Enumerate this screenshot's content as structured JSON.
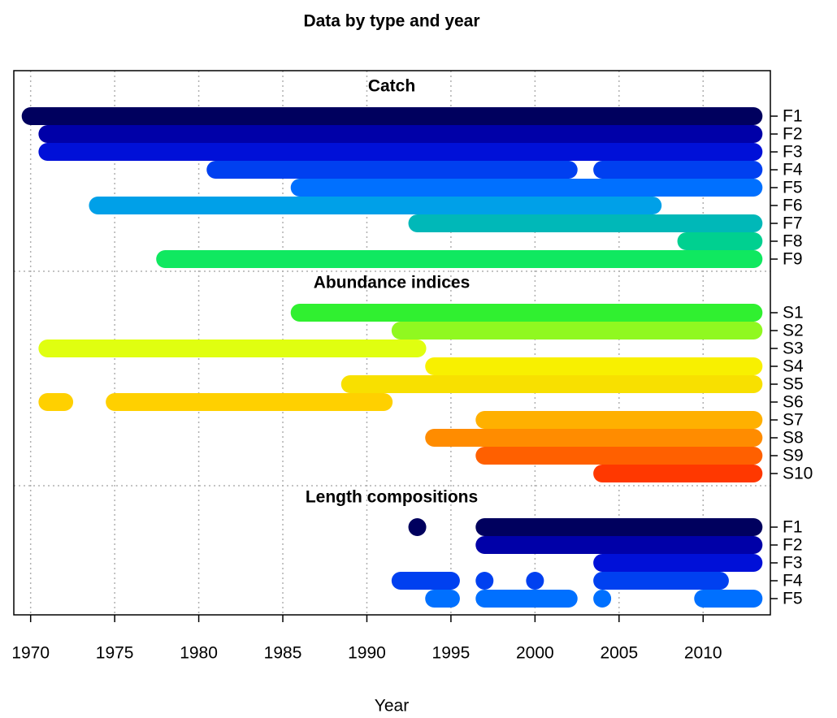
{
  "chart_data": {
    "type": "timeline",
    "title": "Data by type and year",
    "xlabel": "Year",
    "xlim": [
      1969,
      2014
    ],
    "xticks": [
      1970,
      1975,
      1980,
      1985,
      1990,
      1995,
      2000,
      2005,
      2010
    ],
    "grid": true,
    "groups": [
      {
        "title": "Catch",
        "rows": [
          {
            "label": "F1",
            "color": "#00005e",
            "segments": [
              [
                1970,
                2013
              ]
            ]
          },
          {
            "label": "F2",
            "color": "#0000a8",
            "segments": [
              [
                1971,
                2013
              ]
            ]
          },
          {
            "label": "F3",
            "color": "#0010d8",
            "segments": [
              [
                1971,
                2013
              ]
            ]
          },
          {
            "label": "F4",
            "color": "#0040f0",
            "segments": [
              [
                1981,
                2002
              ],
              [
                2004,
                2013
              ]
            ]
          },
          {
            "label": "F5",
            "color": "#0070ff",
            "segments": [
              [
                1986,
                2013
              ]
            ]
          },
          {
            "label": "F6",
            "color": "#00a0e8",
            "segments": [
              [
                1974,
                2007
              ]
            ]
          },
          {
            "label": "F7",
            "color": "#00b8b8",
            "segments": [
              [
                1993,
                2013
              ]
            ]
          },
          {
            "label": "F8",
            "color": "#00d090",
            "segments": [
              [
                2009,
                2013
              ]
            ]
          },
          {
            "label": "F9",
            "color": "#10e860",
            "segments": [
              [
                1978,
                2013
              ]
            ]
          }
        ]
      },
      {
        "title": "Abundance indices",
        "rows": [
          {
            "label": "S1",
            "color": "#30f030",
            "segments": [
              [
                1986,
                2013
              ]
            ]
          },
          {
            "label": "S2",
            "color": "#90f820",
            "segments": [
              [
                1992,
                2013
              ]
            ]
          },
          {
            "label": "S3",
            "color": "#e0ff10",
            "segments": [
              [
                1971,
                1993
              ]
            ]
          },
          {
            "label": "S4",
            "color": "#f8f000",
            "segments": [
              [
                1994,
                2013
              ]
            ]
          },
          {
            "label": "S5",
            "color": "#f8e000",
            "segments": [
              [
                1989,
                2013
              ]
            ]
          },
          {
            "label": "S6",
            "color": "#ffd000",
            "segments": [
              [
                1971,
                1972
              ],
              [
                1975,
                1991
              ]
            ]
          },
          {
            "label": "S7",
            "color": "#ffb000",
            "segments": [
              [
                1997,
                2013
              ]
            ]
          },
          {
            "label": "S8",
            "color": "#ff8c00",
            "segments": [
              [
                1994,
                2013
              ]
            ]
          },
          {
            "label": "S9",
            "color": "#ff6000",
            "segments": [
              [
                1997,
                2013
              ]
            ]
          },
          {
            "label": "S10",
            "color": "#ff3800",
            "segments": [
              [
                2004,
                2013
              ]
            ]
          }
        ]
      },
      {
        "title": "Length compositions",
        "rows": [
          {
            "label": "F1",
            "color": "#00005e",
            "segments": [
              [
                1993,
                1993
              ],
              [
                1997,
                2013
              ]
            ]
          },
          {
            "label": "F2",
            "color": "#0000a8",
            "segments": [
              [
                1997,
                2013
              ]
            ]
          },
          {
            "label": "F3",
            "color": "#0010d8",
            "segments": [
              [
                2004,
                2013
              ]
            ]
          },
          {
            "label": "F4",
            "color": "#0040f0",
            "segments": [
              [
                1992,
                1995
              ],
              [
                1997,
                1997
              ],
              [
                2000,
                2000
              ],
              [
                2004,
                2011
              ]
            ]
          },
          {
            "label": "F5",
            "color": "#0070ff",
            "segments": [
              [
                1994,
                1995
              ],
              [
                1997,
                2002
              ],
              [
                2004,
                2004
              ],
              [
                2010,
                2013
              ]
            ]
          }
        ]
      }
    ]
  }
}
